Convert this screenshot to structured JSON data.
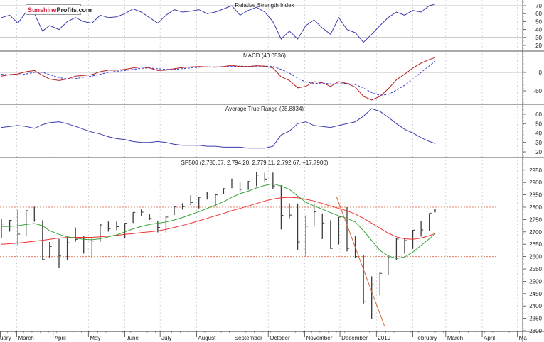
{
  "logo": {
    "part1": "Sunshine",
    "part2": "Profits.com"
  },
  "colors": {
    "rsi": "#3b3bb0",
    "macd": "#b02020",
    "signal": "#3b3bd0",
    "atr": "#3b3bb0",
    "ma_short": "#3aa23a",
    "ma_long": "#f03030",
    "trendline": "#d2693c",
    "levels": "#e08060",
    "bars": "#3a3a3a"
  },
  "chart_data": [
    {
      "type": "line",
      "title": "Relative Strength Index",
      "yticks": [
        70,
        60,
        50,
        40,
        30,
        20
      ],
      "ylim": [
        15,
        75
      ],
      "reference_lines": [
        70,
        30
      ],
      "series": [
        {
          "key": "rsi"
        }
      ]
    },
    {
      "type": "line",
      "title": "MACD (40.0536)",
      "yticks": [
        0,
        -50
      ],
      "ylim": [
        -90,
        60
      ],
      "reference_lines": [
        0
      ],
      "series": [
        {
          "key": "macd",
          "style": "solid"
        },
        {
          "key": "signal",
          "style": "dashed"
        }
      ]
    },
    {
      "type": "line",
      "title": "Average True Range (28.8834)",
      "yticks": [
        60,
        50,
        40,
        30,
        20
      ],
      "ylim": [
        13,
        70
      ],
      "series": [
        {
          "key": "atr"
        }
      ]
    },
    {
      "type": "ohlc",
      "title": "SP500 (2,780.67, 2,794.20, 2,779.11, 2,792.67, +17.7900)",
      "yticks": [
        2950,
        2900,
        2850,
        2800,
        2750,
        2700,
        2650,
        2600,
        2550,
        2500,
        2450,
        2400,
        2350,
        2300
      ],
      "ylim": [
        2290,
        2990
      ],
      "reference_lines": [
        2800,
        2600
      ],
      "trendline": [
        [
          "2018-11-28",
          2843
        ],
        [
          "2019-01-08",
          2317
        ]
      ],
      "series": [
        {
          "key": "price"
        },
        {
          "key": "ma_short"
        },
        {
          "key": "ma_long"
        }
      ]
    }
  ],
  "x_axis": {
    "months": [
      {
        "label": "uary",
        "date": "2018-02-01"
      },
      {
        "label": "March",
        "date": "2018-03-01"
      },
      {
        "label": "April",
        "date": "2018-04-01"
      },
      {
        "label": "May",
        "date": "2018-05-01"
      },
      {
        "label": "June",
        "date": "2018-06-01"
      },
      {
        "label": "July",
        "date": "2018-07-01"
      },
      {
        "label": "August",
        "date": "2018-08-01"
      },
      {
        "label": "September",
        "date": "2018-09-01"
      },
      {
        "label": "October",
        "date": "2018-10-01"
      },
      {
        "label": "November",
        "date": "2018-11-01"
      },
      {
        "label": "December",
        "date": "2018-12-01"
      },
      {
        "label": "2019",
        "date": "2019-01-01"
      },
      {
        "label": "February",
        "date": "2019-02-01"
      },
      {
        "label": "March",
        "date": "2019-03-01"
      },
      {
        "label": "April",
        "date": "2019-04-01"
      },
      {
        "label": "Ma",
        "date": "2019-05-01"
      }
    ],
    "range": [
      "2018-02-14",
      "2019-05-10"
    ]
  },
  "rows_columns": [
    "date",
    "high",
    "low",
    "close",
    "ma_short",
    "ma_long",
    "rsi",
    "macd",
    "signal",
    "atr"
  ],
  "rows": [
    [
      "2018-02-16",
      2754,
      2675,
      2732,
      2722,
      2650,
      55,
      -10,
      -5,
      46
    ],
    [
      "2018-02-23",
      2748,
      2701,
      2747,
      2722,
      2652,
      58,
      -6,
      -7,
      47
    ],
    [
      "2018-03-02",
      2789,
      2647,
      2691,
      2725,
      2655,
      48,
      -4,
      -7,
      48
    ],
    [
      "2018-03-09",
      2787,
      2681,
      2786,
      2730,
      2658,
      62,
      2,
      -4,
      47
    ],
    [
      "2018-03-16",
      2802,
      2741,
      2752,
      2734,
      2662,
      60,
      5,
      0,
      45
    ],
    [
      "2018-03-23",
      2747,
      2585,
      2588,
      2725,
      2666,
      38,
      -8,
      0,
      49
    ],
    [
      "2018-03-29",
      2659,
      2593,
      2641,
      2705,
      2670,
      45,
      -18,
      -6,
      51
    ],
    [
      "2018-04-06",
      2672,
      2553,
      2604,
      2690,
      2675,
      40,
      -22,
      -14,
      52
    ],
    [
      "2018-04-13",
      2680,
      2586,
      2656,
      2680,
      2677,
      50,
      -18,
      -18,
      50
    ],
    [
      "2018-04-20",
      2718,
      2660,
      2670,
      2675,
      2678,
      55,
      -10,
      -17,
      47
    ],
    [
      "2018-04-27",
      2683,
      2612,
      2670,
      2670,
      2678,
      50,
      -8,
      -13,
      44
    ],
    [
      "2018-05-04",
      2676,
      2594,
      2663,
      2668,
      2678,
      48,
      -6,
      -10,
      41
    ],
    [
      "2018-05-11",
      2733,
      2660,
      2728,
      2672,
      2680,
      58,
      2,
      -5,
      39
    ],
    [
      "2018-05-18",
      2742,
      2701,
      2713,
      2680,
      2683,
      55,
      6,
      0,
      36
    ],
    [
      "2018-05-25",
      2742,
      2707,
      2721,
      2688,
      2686,
      56,
      6,
      3,
      34
    ],
    [
      "2018-06-01",
      2736,
      2676,
      2735,
      2700,
      2690,
      60,
      8,
      5,
      33
    ],
    [
      "2018-06-08",
      2779,
      2736,
      2779,
      2712,
      2693,
      66,
      12,
      8,
      31
    ],
    [
      "2018-06-15",
      2791,
      2764,
      2780,
      2722,
      2697,
      62,
      15,
      11,
      30
    ],
    [
      "2018-06-22",
      2774,
      2748,
      2755,
      2730,
      2700,
      55,
      12,
      12,
      30
    ],
    [
      "2018-06-29",
      2743,
      2698,
      2718,
      2735,
      2704,
      48,
      5,
      10,
      31
    ],
    [
      "2018-07-06",
      2763,
      2698,
      2760,
      2740,
      2710,
      58,
      6,
      8,
      30
    ],
    [
      "2018-07-13",
      2804,
      2768,
      2801,
      2748,
      2718,
      65,
      10,
      8,
      28
    ],
    [
      "2018-07-20",
      2816,
      2790,
      2802,
      2758,
      2726,
      62,
      13,
      10,
      27
    ],
    [
      "2018-07-27",
      2848,
      2808,
      2819,
      2770,
      2735,
      63,
      15,
      12,
      27
    ],
    [
      "2018-08-03",
      2841,
      2795,
      2840,
      2782,
      2745,
      65,
      16,
      14,
      27
    ],
    [
      "2018-08-10",
      2863,
      2831,
      2833,
      2795,
      2755,
      60,
      15,
      15,
      26
    ],
    [
      "2018-08-17",
      2852,
      2802,
      2850,
      2808,
      2765,
      62,
      14,
      15,
      26
    ],
    [
      "2018-08-24",
      2877,
      2853,
      2875,
      2822,
      2775,
      66,
      16,
      15,
      25
    ],
    [
      "2018-08-31",
      2916,
      2877,
      2902,
      2840,
      2786,
      70,
      19,
      16,
      25
    ],
    [
      "2018-09-07",
      2903,
      2864,
      2872,
      2855,
      2795,
      58,
      16,
      17,
      25
    ],
    [
      "2018-09-14",
      2906,
      2870,
      2904,
      2865,
      2805,
      64,
      16,
      16,
      24
    ],
    [
      "2018-09-21",
      2941,
      2885,
      2930,
      2878,
      2815,
      68,
      18,
      17,
      24
    ],
    [
      "2018-09-28",
      2939,
      2904,
      2914,
      2888,
      2825,
      62,
      17,
      17,
      24
    ],
    [
      "2018-10-05",
      2940,
      2874,
      2886,
      2895,
      2833,
      50,
      12,
      16,
      26
    ],
    [
      "2018-10-12",
      2889,
      2710,
      2767,
      2885,
      2838,
      28,
      -12,
      8,
      38
    ],
    [
      "2018-10-19",
      2816,
      2755,
      2768,
      2872,
      2840,
      38,
      -22,
      -2,
      42
    ],
    [
      "2018-10-26",
      2815,
      2628,
      2659,
      2845,
      2838,
      28,
      -42,
      -16,
      50
    ],
    [
      "2018-11-02",
      2767,
      2603,
      2723,
      2820,
      2832,
      45,
      -38,
      -26,
      52
    ],
    [
      "2018-11-09",
      2816,
      2722,
      2781,
      2805,
      2825,
      52,
      -25,
      -30,
      48
    ],
    [
      "2018-11-16",
      2775,
      2671,
      2736,
      2792,
      2815,
      42,
      -28,
      -29,
      47
    ],
    [
      "2018-11-23",
      2747,
      2631,
      2633,
      2778,
      2805,
      34,
      -38,
      -31,
      46
    ],
    [
      "2018-11-30",
      2760,
      2649,
      2760,
      2765,
      2795,
      55,
      -25,
      -31,
      48
    ],
    [
      "2018-12-07",
      2800,
      2621,
      2633,
      2755,
      2785,
      40,
      -30,
      -30,
      50
    ],
    [
      "2018-12-14",
      2685,
      2593,
      2600,
      2740,
      2772,
      36,
      -40,
      -33,
      52
    ],
    [
      "2018-12-21",
      2607,
      2409,
      2417,
      2705,
      2755,
      24,
      -65,
      -42,
      58
    ],
    [
      "2018-12-28",
      2520,
      2346,
      2486,
      2665,
      2735,
      34,
      -75,
      -55,
      66
    ],
    [
      "2019-01-04",
      2538,
      2443,
      2532,
      2625,
      2715,
      45,
      -65,
      -62,
      63
    ],
    [
      "2019-01-11",
      2604,
      2524,
      2596,
      2603,
      2695,
      55,
      -45,
      -60,
      57
    ],
    [
      "2019-01-18",
      2675,
      2585,
      2671,
      2592,
      2680,
      62,
      -20,
      -48,
      50
    ],
    [
      "2019-01-25",
      2672,
      2612,
      2665,
      2598,
      2672,
      58,
      -5,
      -35,
      44
    ],
    [
      "2019-02-01",
      2708,
      2631,
      2707,
      2618,
      2670,
      64,
      12,
      -18,
      40
    ],
    [
      "2019-02-08",
      2744,
      2681,
      2708,
      2645,
      2675,
      62,
      25,
      0,
      35
    ],
    [
      "2019-02-15",
      2775,
      2703,
      2776,
      2672,
      2685,
      70,
      35,
      18,
      31
    ],
    [
      "2019-02-20",
      2794.2,
      2779.11,
      2792.67,
      2692,
      2693,
      72,
      40.05,
      30,
      28.88
    ]
  ]
}
